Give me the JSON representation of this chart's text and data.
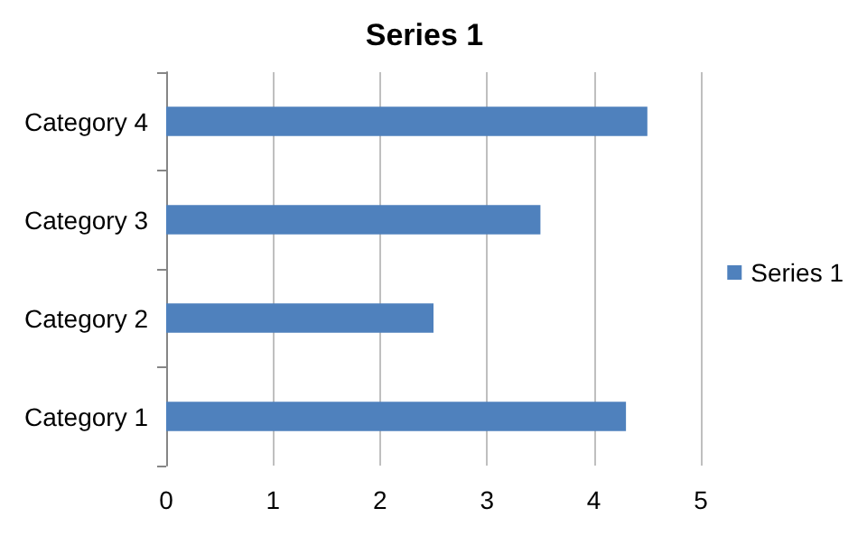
{
  "chart_data": {
    "type": "bar",
    "orientation": "horizontal",
    "title": "Series 1",
    "categories": [
      "Category 4",
      "Category 3",
      "Category 2",
      "Category 1"
    ],
    "series": [
      {
        "name": "Series 1",
        "color": "#4f81bd",
        "values": [
          4.5,
          3.5,
          2.5,
          4.3
        ]
      }
    ],
    "xlim": [
      0,
      5
    ],
    "xticks": [
      0,
      1,
      2,
      3,
      4,
      5
    ],
    "grid": "x",
    "legend": "right"
  }
}
